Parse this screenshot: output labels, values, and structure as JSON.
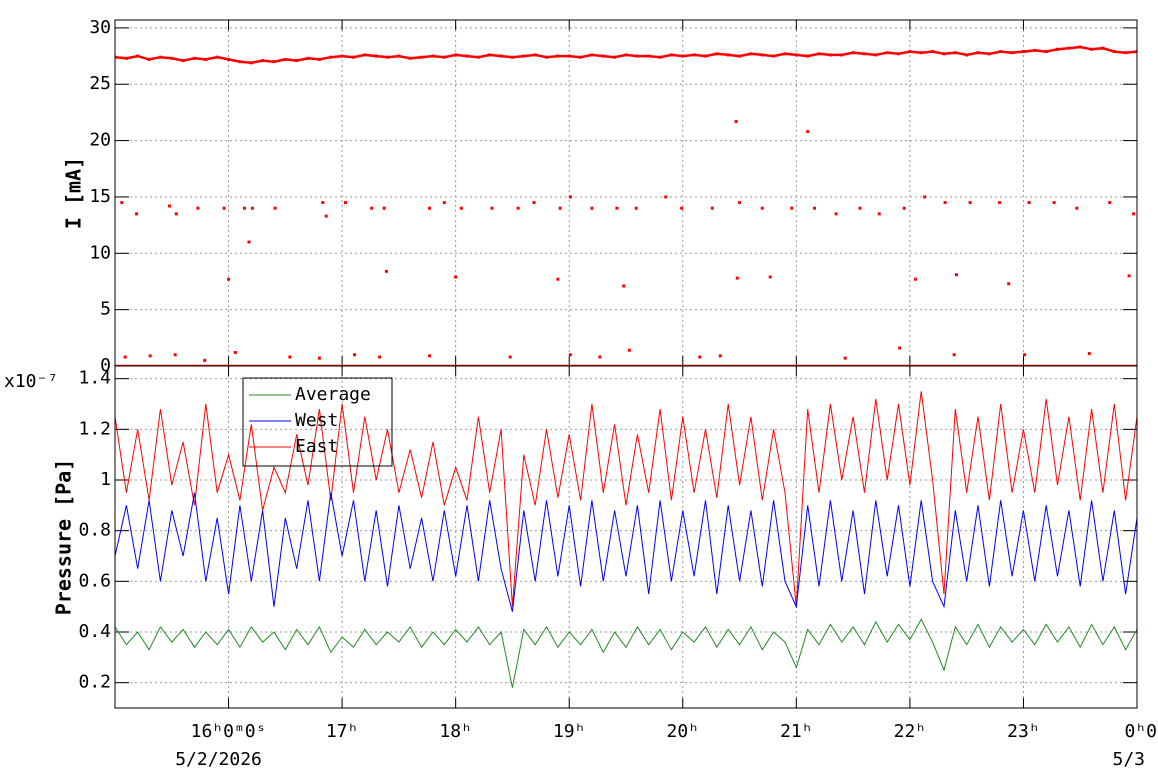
{
  "chart_data": [
    {
      "type": "scatter",
      "y_label": "I [mA]",
      "grid": true,
      "xlim": [
        15,
        24
      ],
      "xticks": [
        16,
        17,
        18,
        19,
        20,
        21,
        22,
        23,
        24
      ],
      "ylim": [
        0,
        30.7
      ],
      "yticks": [
        0,
        5,
        10,
        15,
        20,
        25,
        30
      ],
      "series": [
        {
          "color": "#ff0000",
          "mode": "lines+markers",
          "x": [
            15,
            15.1,
            15.2,
            15.3,
            15.4,
            15.5,
            15.6,
            15.7,
            15.8,
            15.9,
            16,
            16.1,
            16.2,
            16.3,
            16.4,
            16.5,
            16.6,
            16.7,
            16.8,
            16.9,
            17,
            17.1,
            17.2,
            17.3,
            17.4,
            17.5,
            17.6,
            17.7,
            17.8,
            17.9,
            18,
            18.1,
            18.2,
            18.3,
            18.4,
            18.5,
            18.6,
            18.7,
            18.8,
            18.9,
            19,
            19.1,
            19.2,
            19.3,
            19.4,
            19.5,
            19.6,
            19.7,
            19.8,
            19.9,
            20,
            20.1,
            20.2,
            20.3,
            20.4,
            20.5,
            20.6,
            20.7,
            20.8,
            20.9,
            21,
            21.1,
            21.2,
            21.3,
            21.4,
            21.5,
            21.6,
            21.7,
            21.8,
            21.9,
            22,
            22.1,
            22.2,
            22.3,
            22.4,
            22.5,
            22.6,
            22.7,
            22.8,
            22.9,
            23,
            23.1,
            23.2,
            23.3,
            23.4,
            23.5,
            23.6,
            23.7,
            23.8,
            23.9,
            24
          ],
          "values": [
            27.4,
            27.3,
            27.5,
            27.2,
            27.4,
            27.3,
            27.1,
            27.3,
            27.2,
            27.4,
            27.2,
            27.0,
            26.9,
            27.1,
            27.0,
            27.2,
            27.1,
            27.3,
            27.2,
            27.4,
            27.5,
            27.4,
            27.6,
            27.5,
            27.4,
            27.5,
            27.3,
            27.4,
            27.5,
            27.4,
            27.6,
            27.5,
            27.4,
            27.6,
            27.5,
            27.4,
            27.5,
            27.6,
            27.4,
            27.5,
            27.5,
            27.4,
            27.6,
            27.5,
            27.4,
            27.6,
            27.5,
            27.5,
            27.4,
            27.6,
            27.5,
            27.6,
            27.5,
            27.7,
            27.6,
            27.5,
            27.7,
            27.6,
            27.5,
            27.7,
            27.6,
            27.5,
            27.7,
            27.6,
            27.6,
            27.8,
            27.7,
            27.6,
            27.8,
            27.7,
            27.9,
            27.8,
            27.9,
            27.7,
            27.8,
            27.6,
            27.8,
            27.7,
            27.9,
            27.8,
            27.9,
            28.0,
            27.9,
            28.1,
            28.2,
            28.3,
            28.1,
            28.2,
            27.9,
            27.8,
            27.9
          ]
        },
        {
          "color": "#ff0000",
          "mode": "markers",
          "x": [
            15.06,
            15.19,
            15.48,
            15.54,
            15.73,
            15.96,
            16.14,
            16.21,
            16.41,
            16.83,
            16.86,
            17.03,
            17.26,
            17.37,
            17.77,
            17.9,
            18.05,
            18.32,
            18.55,
            18.69,
            18.92,
            19.01,
            19.2,
            19.42,
            19.59,
            19.85,
            19.99,
            20.26,
            20.5,
            20.7,
            20.96,
            21.16,
            21.35,
            21.56,
            21.73,
            21.95,
            22.13,
            22.31,
            22.53,
            22.79,
            23.05,
            23.27,
            23.47,
            23.76,
            23.97,
            16,
            16.18,
            17.39,
            18,
            18.9,
            19.48,
            20.47,
            20.48,
            20.77,
            21.1,
            22.05,
            22.41,
            22.87,
            23.93,
            15.09,
            15.31,
            15.53,
            15.79,
            16.06,
            16.54,
            16.8,
            17.11,
            17.33,
            17.77,
            18.48,
            19.01,
            19.27,
            19.53,
            20.15,
            20.33,
            21.43,
            21.91,
            22.39,
            23.01,
            23.58
          ],
          "values": [
            14.5,
            13.5,
            14.2,
            13.5,
            14,
            14,
            14,
            14,
            14,
            14.5,
            13.3,
            14.5,
            14,
            14,
            14,
            14.5,
            14,
            14,
            14,
            14.5,
            14,
            15,
            14,
            14,
            14,
            15,
            14,
            14,
            14.5,
            14,
            14,
            14,
            13.5,
            14,
            13.5,
            14,
            15,
            14.5,
            14.5,
            14.5,
            14.5,
            14.5,
            14,
            14.5,
            13.5,
            7.7,
            11,
            8.4,
            7.9,
            7.7,
            7.1,
            21.7,
            7.8,
            7.9,
            20.8,
            7.7,
            8.1,
            7.3,
            8,
            0.8,
            0.9,
            1.0,
            0.5,
            1.2,
            0.8,
            0.7,
            1.0,
            0.8,
            0.9,
            0.8,
            1.0,
            0.8,
            1.4,
            0.8,
            0.9,
            0.7,
            1.6,
            1.0,
            1.0,
            1.1
          ]
        },
        {
          "color": "#ff0000",
          "mode": "lines",
          "x": [
            15,
            24
          ],
          "values": [
            0,
            0
          ]
        }
      ]
    },
    {
      "type": "line",
      "y_label": "Pressure [Pa]",
      "y_multiplier": "x10⁻⁷",
      "grid": true,
      "legend": "top-left",
      "xlim": [
        15,
        24
      ],
      "xticks": [
        {
          "value": 16,
          "label": "16ʰ0ᵐ0ˢ"
        },
        {
          "value": 17,
          "label": "17ʰ"
        },
        {
          "value": 18,
          "label": "18ʰ"
        },
        {
          "value": 19,
          "label": "19ʰ"
        },
        {
          "value": 20,
          "label": "20ʰ"
        },
        {
          "value": 21,
          "label": "21ʰ"
        },
        {
          "value": 22,
          "label": "22ʰ"
        },
        {
          "value": 23,
          "label": "23ʰ"
        },
        {
          "value": 24,
          "label": "0ʰ0"
        }
      ],
      "date_labels": [
        {
          "value": 16,
          "label": "5/2/2026"
        },
        {
          "value": 24,
          "label": "5/3"
        }
      ],
      "ylim": [
        0.1,
        1.45
      ],
      "yticks": [
        0.2,
        0.4,
        0.6,
        0.8,
        1,
        1.2,
        1.4
      ],
      "x": [
        15,
        15.1,
        15.2,
        15.3,
        15.4,
        15.5,
        15.6,
        15.7,
        15.8,
        15.9,
        16,
        16.1,
        16.2,
        16.3,
        16.4,
        16.5,
        16.6,
        16.7,
        16.8,
        16.9,
        17,
        17.1,
        17.2,
        17.3,
        17.4,
        17.5,
        17.6,
        17.7,
        17.8,
        17.9,
        18,
        18.1,
        18.2,
        18.3,
        18.4,
        18.5,
        18.6,
        18.7,
        18.8,
        18.9,
        19,
        19.1,
        19.2,
        19.3,
        19.4,
        19.5,
        19.6,
        19.7,
        19.8,
        19.9,
        20,
        20.1,
        20.2,
        20.3,
        20.4,
        20.5,
        20.6,
        20.7,
        20.8,
        20.9,
        21,
        21.1,
        21.2,
        21.3,
        21.4,
        21.5,
        21.6,
        21.7,
        21.8,
        21.9,
        22,
        22.1,
        22.2,
        22.3,
        22.4,
        22.5,
        22.6,
        22.7,
        22.8,
        22.9,
        23,
        23.1,
        23.2,
        23.3,
        23.4,
        23.5,
        23.6,
        23.7,
        23.8,
        23.9,
        24
      ],
      "series": [
        {
          "name": "East",
          "color": "#ff0000",
          "values": [
            1.25,
            0.95,
            1.2,
            0.92,
            1.28,
            0.98,
            1.15,
            0.9,
            1.3,
            0.95,
            1.1,
            0.92,
            1.22,
            0.88,
            1.05,
            0.95,
            1.18,
            0.98,
            1.28,
            0.92,
            1.3,
            0.95,
            1.25,
            1.0,
            1.2,
            0.95,
            1.12,
            0.93,
            1.15,
            0.9,
            1.05,
            0.92,
            1.25,
            0.95,
            1.2,
            0.5,
            1.1,
            0.9,
            1.2,
            0.93,
            1.18,
            0.92,
            1.3,
            0.95,
            1.22,
            0.9,
            1.18,
            0.95,
            1.28,
            0.92,
            1.25,
            0.95,
            1.2,
            0.93,
            1.3,
            0.98,
            1.25,
            0.92,
            1.2,
            0.95,
            0.5,
            1.28,
            0.95,
            1.3,
            1.0,
            1.25,
            0.95,
            1.32,
            1.0,
            1.3,
            0.98,
            1.35,
            1.0,
            0.55,
            1.28,
            0.95,
            1.25,
            0.92,
            1.3,
            0.95,
            1.2,
            0.95,
            1.32,
            0.98,
            1.25,
            0.92,
            1.28,
            0.95,
            1.3,
            0.92,
            1.25
          ]
        },
        {
          "name": "West",
          "color": "#0000ff",
          "values": [
            0.7,
            0.9,
            0.65,
            0.92,
            0.6,
            0.88,
            0.7,
            0.95,
            0.6,
            0.85,
            0.55,
            0.9,
            0.6,
            0.88,
            0.5,
            0.85,
            0.65,
            0.92,
            0.6,
            0.95,
            0.7,
            0.92,
            0.6,
            0.88,
            0.58,
            0.9,
            0.65,
            0.85,
            0.6,
            0.88,
            0.62,
            0.9,
            0.6,
            0.92,
            0.65,
            0.48,
            0.88,
            0.6,
            0.92,
            0.62,
            0.9,
            0.58,
            0.92,
            0.6,
            0.88,
            0.62,
            0.9,
            0.55,
            0.92,
            0.6,
            0.88,
            0.62,
            0.92,
            0.55,
            0.9,
            0.6,
            0.88,
            0.58,
            0.92,
            0.6,
            0.5,
            0.9,
            0.58,
            0.92,
            0.6,
            0.88,
            0.55,
            0.92,
            0.62,
            0.9,
            0.58,
            0.92,
            0.6,
            0.5,
            0.88,
            0.6,
            0.9,
            0.58,
            0.92,
            0.62,
            0.88,
            0.6,
            0.9,
            0.62,
            0.88,
            0.58,
            0.92,
            0.6,
            0.88,
            0.55,
            0.85
          ]
        },
        {
          "name": "Average",
          "color": "#228b22",
          "values": [
            0.42,
            0.35,
            0.4,
            0.33,
            0.42,
            0.36,
            0.41,
            0.34,
            0.4,
            0.35,
            0.41,
            0.34,
            0.42,
            0.36,
            0.4,
            0.33,
            0.41,
            0.35,
            0.42,
            0.32,
            0.38,
            0.34,
            0.41,
            0.35,
            0.4,
            0.36,
            0.42,
            0.34,
            0.4,
            0.35,
            0.41,
            0.36,
            0.42,
            0.35,
            0.4,
            0.18,
            0.41,
            0.35,
            0.42,
            0.34,
            0.4,
            0.35,
            0.41,
            0.32,
            0.4,
            0.34,
            0.42,
            0.35,
            0.41,
            0.33,
            0.4,
            0.36,
            0.42,
            0.34,
            0.41,
            0.35,
            0.42,
            0.33,
            0.4,
            0.36,
            0.26,
            0.41,
            0.35,
            0.43,
            0.36,
            0.42,
            0.35,
            0.44,
            0.36,
            0.43,
            0.37,
            0.45,
            0.36,
            0.25,
            0.42,
            0.35,
            0.43,
            0.34,
            0.42,
            0.36,
            0.41,
            0.35,
            0.43,
            0.36,
            0.42,
            0.34,
            0.43,
            0.35,
            0.42,
            0.33,
            0.41
          ]
        }
      ]
    }
  ]
}
